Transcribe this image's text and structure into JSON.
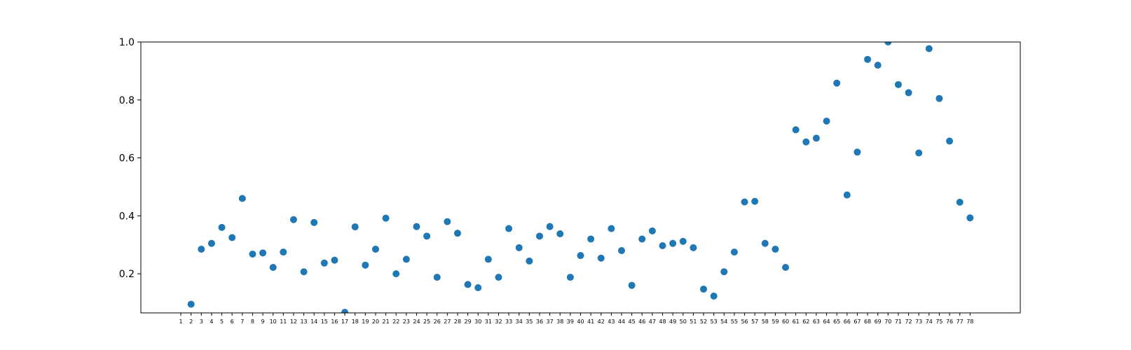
{
  "chart_data": {
    "type": "scatter",
    "title": "",
    "xlabel": "",
    "ylabel": "",
    "color": "#1f77b4",
    "grid": false,
    "xlim": [
      -2.9,
      82.9
    ],
    "ylim": [
      0.065,
      1.0
    ],
    "yticks": [
      "0.2",
      "0.4",
      "0.6",
      "0.8",
      "1.0"
    ],
    "x": [
      1,
      2,
      3,
      4,
      5,
      6,
      7,
      8,
      9,
      10,
      11,
      12,
      13,
      14,
      15,
      16,
      17,
      18,
      19,
      20,
      21,
      22,
      23,
      24,
      25,
      26,
      27,
      28,
      29,
      30,
      31,
      32,
      33,
      34,
      35,
      36,
      37,
      38,
      39,
      40,
      41,
      42,
      43,
      44,
      45,
      46,
      47,
      48,
      49,
      50,
      51,
      52,
      53,
      54,
      55,
      56,
      57,
      58,
      59,
      60,
      61,
      62,
      63,
      64,
      65,
      66,
      67,
      68,
      69,
      70,
      71,
      72,
      73,
      74,
      75,
      76,
      77,
      78
    ],
    "y": [
      null,
      0.095,
      0.285,
      0.305,
      0.36,
      0.325,
      0.46,
      0.268,
      0.272,
      0.222,
      0.275,
      0.387,
      0.207,
      0.377,
      0.237,
      0.247,
      0.067,
      0.362,
      0.23,
      0.285,
      0.392,
      0.2,
      0.25,
      0.363,
      0.33,
      0.188,
      0.38,
      0.34,
      0.163,
      0.152,
      0.25,
      0.188,
      0.356,
      0.29,
      0.244,
      0.33,
      0.363,
      0.338,
      0.188,
      0.263,
      0.32,
      0.254,
      0.356,
      0.28,
      0.16,
      0.32,
      0.348,
      0.297,
      0.305,
      0.312,
      0.29,
      0.147,
      0.123,
      0.207,
      0.275,
      0.448,
      0.45,
      0.305,
      0.285,
      0.222,
      0.697,
      0.655,
      0.668,
      0.727,
      0.858,
      0.472,
      0.62,
      0.94,
      0.92,
      1.0,
      0.853,
      0.825,
      0.617,
      0.977,
      0.805,
      0.658,
      0.447,
      0.393
    ]
  }
}
